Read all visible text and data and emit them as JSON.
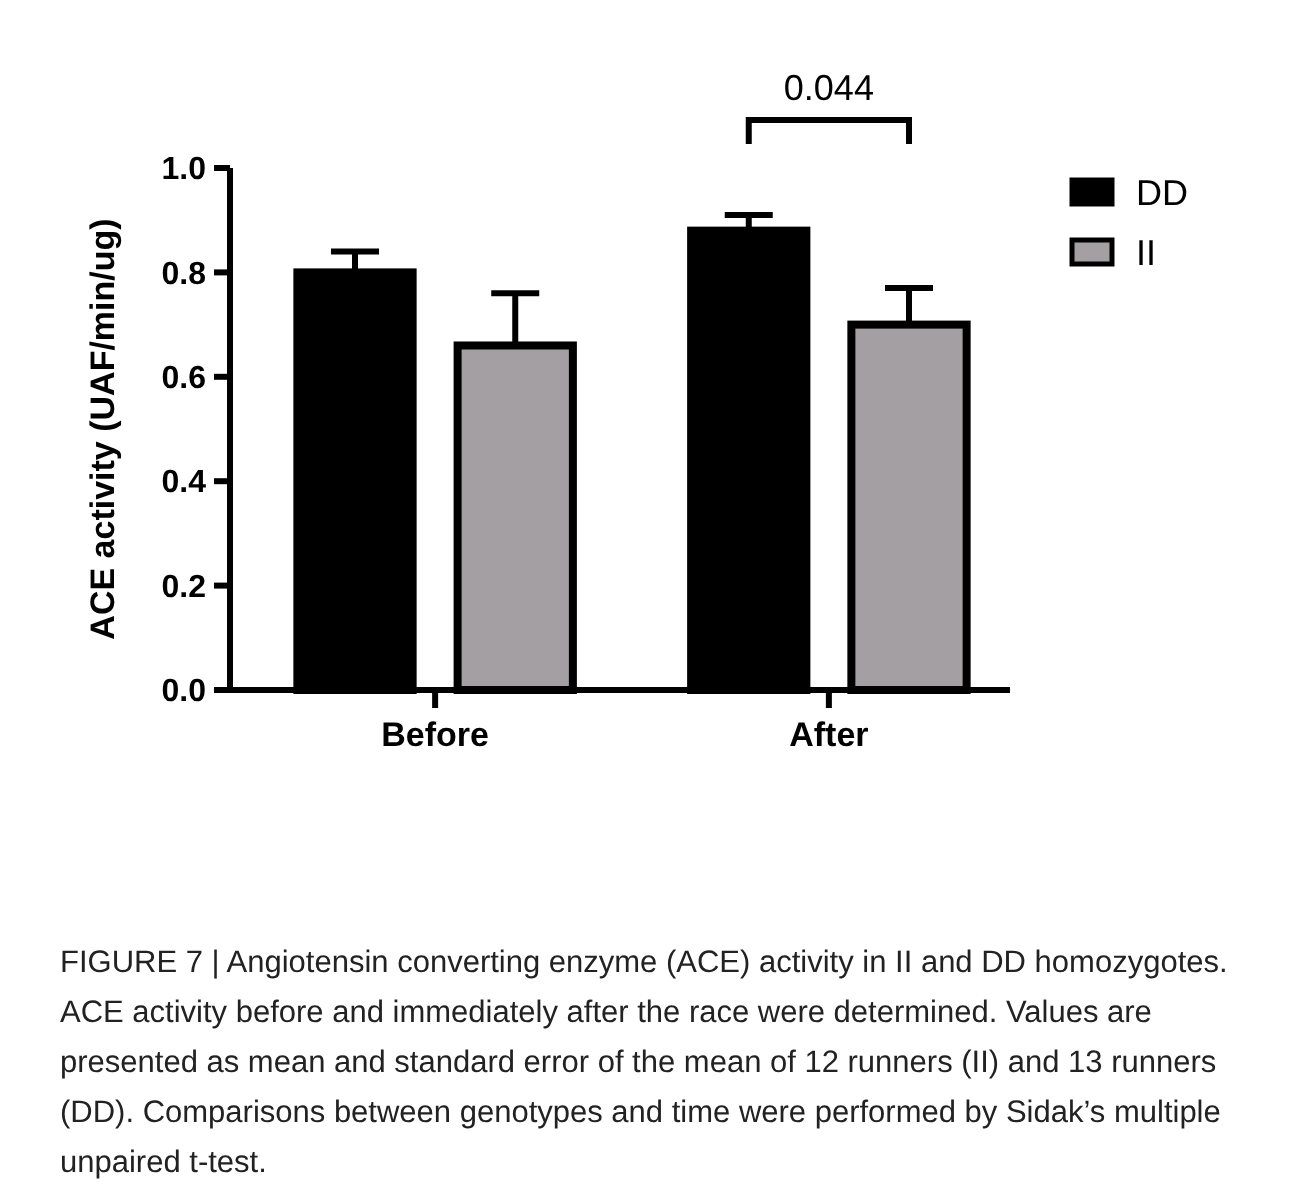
{
  "chart_data": {
    "type": "bar",
    "ylabel": "ACE activity (UAF/min/ug)",
    "categories": [
      "Before",
      "After"
    ],
    "series": [
      {
        "name": "DD",
        "color": "#000000",
        "values": [
          0.8,
          0.88
        ],
        "errors": [
          [
            0.8,
            0.84
          ],
          [
            0.88,
            0.91
          ]
        ]
      },
      {
        "name": "II",
        "color": "#a49fa3",
        "values": [
          0.66,
          0.7
        ],
        "errors": [
          [
            0.66,
            0.76
          ],
          [
            0.7,
            0.77
          ]
        ]
      }
    ],
    "ylim": [
      0,
      1.0
    ],
    "yticks": [
      {
        "value": 0,
        "label": "0.0"
      },
      {
        "value": 0.2,
        "label": "0.2"
      },
      {
        "value": 0.4,
        "label": "0.4"
      },
      {
        "value": 0.6,
        "label": "0.6"
      },
      {
        "value": 0.8,
        "label": "0.8"
      },
      {
        "value": 1.0,
        "label": "1.0"
      }
    ],
    "grid": false,
    "legend": "right",
    "annotations": [
      "0.044",
      "FIGURE 7 | Angiotensin converting enzyme (ACE) activity in II and DD homozygotes. ACE activity before and immediately after the race were determined. Values are presented as mean and standard error of the mean of 12 runners (II) and 13 runners (DD). Comparisons between genotypes and time were performed by Sidak’s multiple unpaired t-test."
    ]
  }
}
